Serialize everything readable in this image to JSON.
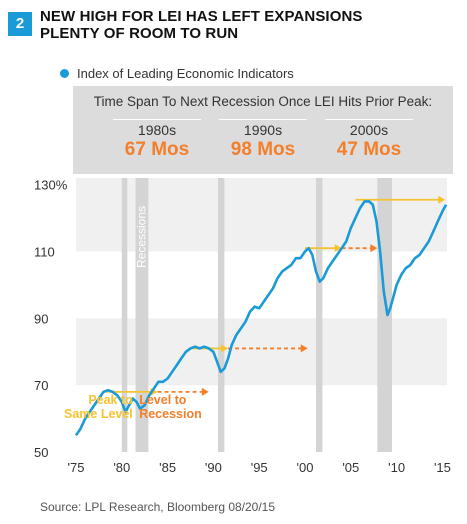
{
  "figure_number": "2",
  "title_line1": "NEW HIGH FOR LEI HAS LEFT EXPANSIONS",
  "title_line2": "PLENTY OF ROOM TO RUN",
  "source": "Source: LPL Research, Bloomberg  08/20/15",
  "colors": {
    "line": "#1a9ad6",
    "accent_orange": "#f47f2a",
    "accent_yellow": "#f6c330",
    "recession": "#d4d4d4"
  },
  "panel": {
    "heading": "Time Span To Next Recession Once LEI Hits Prior Peak:",
    "decades": [
      {
        "label": "1980s",
        "value": "67 Mos"
      },
      {
        "label": "1990s",
        "value": "98 Mos"
      },
      {
        "label": "2000s",
        "value": "47 Mos"
      }
    ]
  },
  "chart_data": {
    "type": "line",
    "legend": "Index of Leading Economic Indicators",
    "y_ticks": [
      "130%",
      "110",
      "90",
      "70",
      "50"
    ],
    "y_tick_values": [
      130,
      110,
      90,
      70,
      50
    ],
    "x_ticks": [
      "'75",
      "'80",
      "'85",
      "'90",
      "'95",
      "'00",
      "'05",
      "'10",
      "'15"
    ],
    "x_tick_values": [
      1975,
      1980,
      1985,
      1990,
      1995,
      2000,
      2005,
      2010,
      2015
    ],
    "xlim": [
      1975,
      2015.5
    ],
    "ylim": [
      50,
      132
    ],
    "recession_label": "Recessions",
    "recessions": [
      [
        1980.0,
        1980.6
      ],
      [
        1981.5,
        1982.9
      ],
      [
        1990.5,
        1991.2
      ],
      [
        2001.2,
        2001.9
      ],
      [
        2007.9,
        2009.5
      ]
    ],
    "annotations": {
      "peak_to_same_level": "Peak to\nSame Level",
      "level_to_recession": "Level to\nRecession"
    },
    "arrows": [
      {
        "kind": "yellow",
        "y": 68,
        "x1": 1978.3,
        "x2": 1983.9
      },
      {
        "kind": "orange",
        "y": 68,
        "x1": 1983.9,
        "x2": 1989.5
      },
      {
        "kind": "yellow",
        "y": 81,
        "x1": 1987.8,
        "x2": 1991.6
      },
      {
        "kind": "orange",
        "y": 81,
        "x1": 1991.6,
        "x2": 2000.3
      },
      {
        "kind": "yellow",
        "y": 111,
        "x1": 2000.0,
        "x2": 2004.0
      },
      {
        "kind": "orange",
        "y": 111,
        "x1": 2004.0,
        "x2": 2007.9
      },
      {
        "kind": "yellow",
        "y": 125.5,
        "x1": 2005.5,
        "x2": 2015.3
      }
    ],
    "series": [
      {
        "x": [
          1975.0,
          1975.5,
          1976.0,
          1976.5,
          1977.0,
          1977.5,
          1978.0,
          1978.5,
          1979.0,
          1979.5,
          1980.0,
          1980.4,
          1980.8,
          1981.2,
          1981.6,
          1982.0,
          1982.5,
          1983.0,
          1983.5,
          1984.0,
          1984.5,
          1985.0,
          1985.5,
          1986.0,
          1986.5,
          1987.0,
          1987.5,
          1988.0,
          1988.5,
          1989.0,
          1989.5,
          1990.0,
          1990.4,
          1990.8,
          1991.2,
          1991.6,
          1992.0,
          1992.5,
          1993.0,
          1993.5,
          1994.0,
          1994.5,
          1995.0,
          1995.5,
          1996.0,
          1996.5,
          1997.0,
          1997.5,
          1998.0,
          1998.5,
          1999.0,
          1999.5,
          2000.0,
          2000.4,
          2000.8,
          2001.2,
          2001.6,
          2002.0,
          2002.5,
          2003.0,
          2003.5,
          2004.0,
          2004.5,
          2005.0,
          2005.5,
          2006.0,
          2006.5,
          2007.0,
          2007.4,
          2007.8,
          2008.2,
          2008.6,
          2009.0,
          2009.3,
          2009.7,
          2010.0,
          2010.5,
          2011.0,
          2011.5,
          2012.0,
          2012.5,
          2013.0,
          2013.5,
          2014.0,
          2014.5,
          2015.0,
          2015.4
        ],
        "y": [
          55,
          57,
          60,
          62,
          64,
          66,
          68,
          68.5,
          68,
          67,
          65,
          62,
          64,
          66,
          65,
          63,
          64,
          67,
          69,
          71,
          71,
          72,
          74,
          76,
          78,
          80,
          81,
          81.5,
          81,
          81.5,
          81,
          80,
          77,
          74,
          75,
          78,
          82,
          85,
          87,
          89,
          92,
          93.5,
          93,
          95,
          97,
          99,
          102,
          104,
          105,
          106,
          108,
          108,
          110,
          111,
          109,
          104,
          101,
          102,
          105,
          107,
          109,
          111,
          113,
          117,
          120,
          123,
          125,
          125,
          124,
          119,
          110,
          98,
          91,
          93,
          97,
          100,
          103,
          105,
          106,
          108,
          109,
          111,
          113,
          116,
          119,
          122,
          124
        ]
      }
    ]
  }
}
